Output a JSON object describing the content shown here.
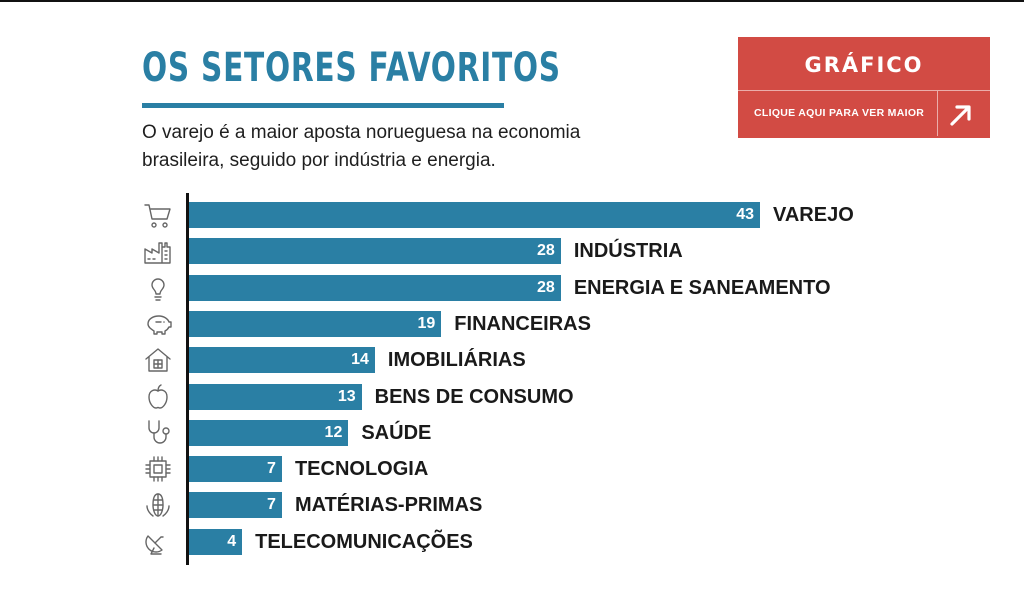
{
  "header": {
    "title": "OS SETORES FAVORITOS",
    "subtitle": "O varejo é a maior aposta norueguesa na economia brasileira, seguido por indústria e energia."
  },
  "cta": {
    "title": "GRÁFICO",
    "link_text": "CLIQUE AQUI PARA VER MAIOR",
    "icon": "arrow-up-right-icon"
  },
  "colors": {
    "bar": "#2a7fa4",
    "title": "#2a7fa4",
    "cta_background": "#d24b44"
  },
  "chart_data": {
    "type": "bar",
    "orientation": "horizontal",
    "categories": [
      "VAREJO",
      "INDÚSTRIA",
      "ENERGIA E SANEAMENTO",
      "FINANCEIRAS",
      "IMOBILIÁRIAS",
      "BENS DE CONSUMO",
      "SAÚDE",
      "TECNOLOGIA",
      "MATÉRIAS-PRIMAS",
      "TELECOMUNICAÇÕES"
    ],
    "values": [
      43,
      28,
      28,
      19,
      14,
      13,
      12,
      7,
      7,
      4
    ],
    "labels_shown": [
      "43",
      "28",
      "28",
      "19",
      "14",
      "13",
      "12",
      "7",
      "7",
      "4"
    ],
    "icons": [
      "shopping-cart-icon",
      "factory-icon",
      "lightbulb-icon",
      "piggy-bank-icon",
      "house-icon",
      "apple-icon",
      "stethoscope-icon",
      "chip-icon",
      "corn-icon",
      "satellite-dish-icon"
    ],
    "xlim": [
      0,
      43
    ],
    "grid": false,
    "legend": "none"
  }
}
